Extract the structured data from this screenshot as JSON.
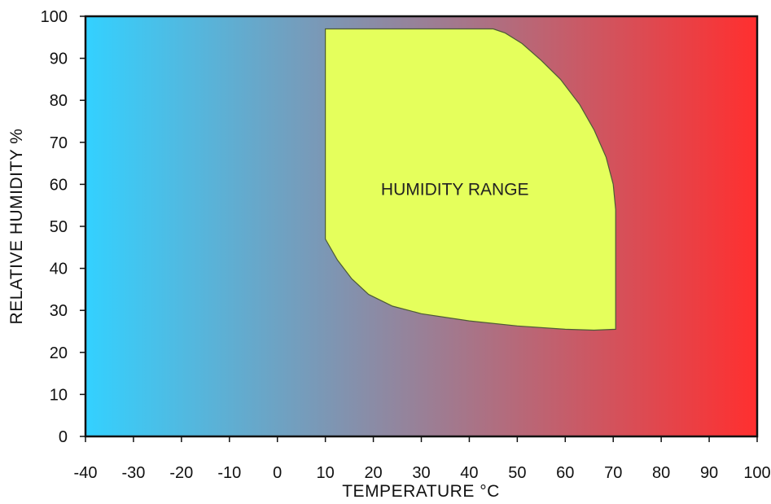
{
  "chart_data": {
    "type": "area",
    "title": "",
    "xlabel": "TEMPERATURE °C",
    "ylabel": "RELATIVE HUMIDITY %",
    "xlim": [
      -40,
      100
    ],
    "ylim": [
      0,
      100
    ],
    "x_ticks": [
      -40,
      -30,
      -20,
      -10,
      0,
      10,
      20,
      30,
      40,
      50,
      60,
      70,
      80,
      90,
      100
    ],
    "y_ticks": [
      0,
      10,
      20,
      30,
      40,
      50,
      60,
      70,
      80,
      90,
      100
    ],
    "grid": false,
    "background_gradient": {
      "direction": "left-to-right",
      "start_color": "#33d1ff",
      "end_color": "#ff2f2f"
    },
    "region": {
      "label": "HUMIDITY RANGE",
      "label_position": {
        "x": 37,
        "y": 58.5
      },
      "fill_color": "#e5ff5c",
      "stroke_color": "#4c5a36",
      "boundary": [
        {
          "x": 10,
          "y": 97
        },
        {
          "x": 45,
          "y": 97
        },
        {
          "x": 47.5,
          "y": 96
        },
        {
          "x": 51,
          "y": 93.5
        },
        {
          "x": 55,
          "y": 89.5
        },
        {
          "x": 59,
          "y": 85
        },
        {
          "x": 63,
          "y": 79
        },
        {
          "x": 66,
          "y": 73
        },
        {
          "x": 68.5,
          "y": 66.5
        },
        {
          "x": 70,
          "y": 60
        },
        {
          "x": 70.5,
          "y": 54
        },
        {
          "x": 70.5,
          "y": 25.5
        },
        {
          "x": 66,
          "y": 25.3
        },
        {
          "x": 60,
          "y": 25.5
        },
        {
          "x": 50,
          "y": 26.3
        },
        {
          "x": 40,
          "y": 27.5
        },
        {
          "x": 30,
          "y": 29.2
        },
        {
          "x": 24,
          "y": 31
        },
        {
          "x": 19,
          "y": 33.8
        },
        {
          "x": 15.5,
          "y": 37.5
        },
        {
          "x": 12.5,
          "y": 42
        },
        {
          "x": 10,
          "y": 47
        }
      ]
    }
  }
}
